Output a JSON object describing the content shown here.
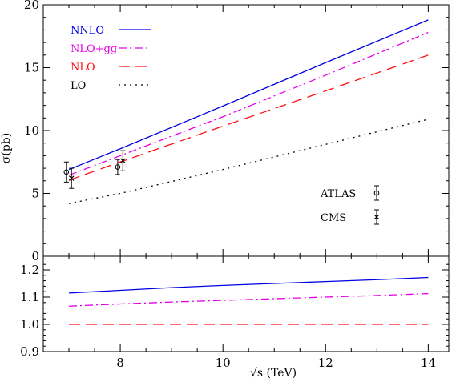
{
  "chart_data": [
    {
      "type": "line",
      "panel": "main",
      "xlabel": "√s (TeV)",
      "ylabel": "σ(pb)",
      "xlim": [
        6.5,
        14.4
      ],
      "ylim": [
        0,
        20
      ],
      "yticks": [
        "0",
        "5",
        "10",
        "15",
        "20"
      ],
      "grid": false,
      "legend_position": "top-left",
      "series": [
        {
          "name": "NNLO",
          "color": "#0000e6",
          "style": "solid",
          "x": [
            7,
            8,
            10,
            12,
            14
          ],
          "y": [
            6.9,
            8.55,
            11.95,
            15.4,
            18.8
          ]
        },
        {
          "name": "NLO+gg",
          "color": "#e600e6",
          "style": "dashdot",
          "x": [
            7,
            8,
            10,
            12,
            14
          ],
          "y": [
            6.45,
            8.0,
            11.1,
            14.4,
            17.8
          ]
        },
        {
          "name": "NLO",
          "color": "#ff1010",
          "style": "dashed",
          "x": [
            7,
            8,
            10,
            12,
            14
          ],
          "y": [
            6.05,
            7.5,
            10.35,
            13.15,
            16.0
          ]
        },
        {
          "name": "LO",
          "color": "#000000",
          "style": "dotted",
          "x": [
            7,
            8,
            10,
            12,
            14
          ],
          "y": [
            4.2,
            5.0,
            6.9,
            8.9,
            10.9
          ]
        }
      ],
      "data_points": [
        {
          "name": "ATLAS",
          "marker": "circle",
          "x": [
            6.95,
            7.95
          ],
          "y": [
            6.7,
            7.1
          ],
          "err": [
            0.8,
            0.6
          ]
        },
        {
          "name": "CMS",
          "marker": "cross",
          "x": [
            7.05,
            8.05
          ],
          "y": [
            6.2,
            7.6
          ],
          "err": [
            0.8,
            0.8
          ]
        }
      ]
    },
    {
      "type": "line",
      "panel": "ratio",
      "xlim": [
        6.5,
        14.4
      ],
      "ylim": [
        0.9,
        1.25
      ],
      "xticks": [
        "8",
        "10",
        "12",
        "14"
      ],
      "yticks": [
        "0.9",
        "1.0",
        "1.1",
        "1.2"
      ],
      "grid": false,
      "series": [
        {
          "color": "#0000e6",
          "style": "solid",
          "x": [
            7,
            8,
            9,
            10,
            11,
            12,
            13,
            14
          ],
          "y": [
            1.115,
            1.125,
            1.135,
            1.143,
            1.15,
            1.157,
            1.164,
            1.172
          ]
        },
        {
          "color": "#e600e6",
          "style": "dashdot",
          "x": [
            7,
            8,
            9,
            10,
            11,
            12,
            13,
            14
          ],
          "y": [
            1.067,
            1.075,
            1.082,
            1.088,
            1.094,
            1.1,
            1.106,
            1.113
          ]
        },
        {
          "color": "#ff1010",
          "style": "dashed",
          "x": [
            7,
            14
          ],
          "y": [
            1.0,
            1.0
          ]
        }
      ]
    }
  ]
}
